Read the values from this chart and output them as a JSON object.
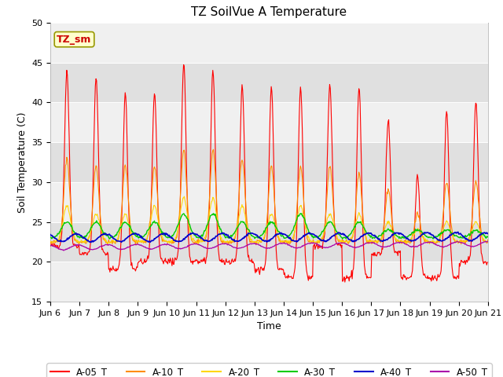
{
  "title": "TZ SoilVue A Temperature",
  "xlabel": "Time",
  "ylabel": "Soil Temperature (C)",
  "ylim": [
    15,
    50
  ],
  "yticks": [
    15,
    20,
    25,
    30,
    35,
    40,
    45,
    50
  ],
  "x_labels": [
    "Jun 6",
    "Jun 7",
    "Jun 8",
    "Jun 9",
    "Jun 10",
    "Jun 11",
    "Jun 12",
    "Jun 13",
    "Jun 14",
    "Jun 15",
    "Jun 16",
    "Jun 17",
    "Jun 18",
    "Jun 19",
    "Jun 20",
    "Jun 21"
  ],
  "series_colors": {
    "A-05_T": "#ff0000",
    "A-10_T": "#ff8c00",
    "A-20_T": "#ffd700",
    "A-30_T": "#00cc00",
    "A-40_T": "#0000cc",
    "A-50_T": "#aa00aa"
  },
  "annotation_text": "TZ_sm",
  "annotation_color": "#cc0000",
  "annotation_bg": "#ffffcc",
  "annotation_edge": "#999900",
  "fig_bg": "#ffffff",
  "plot_bg_light": "#f0f0f0",
  "plot_bg_dark": "#e0e0e0",
  "title_fontsize": 11,
  "label_fontsize": 9,
  "tick_fontsize": 8
}
